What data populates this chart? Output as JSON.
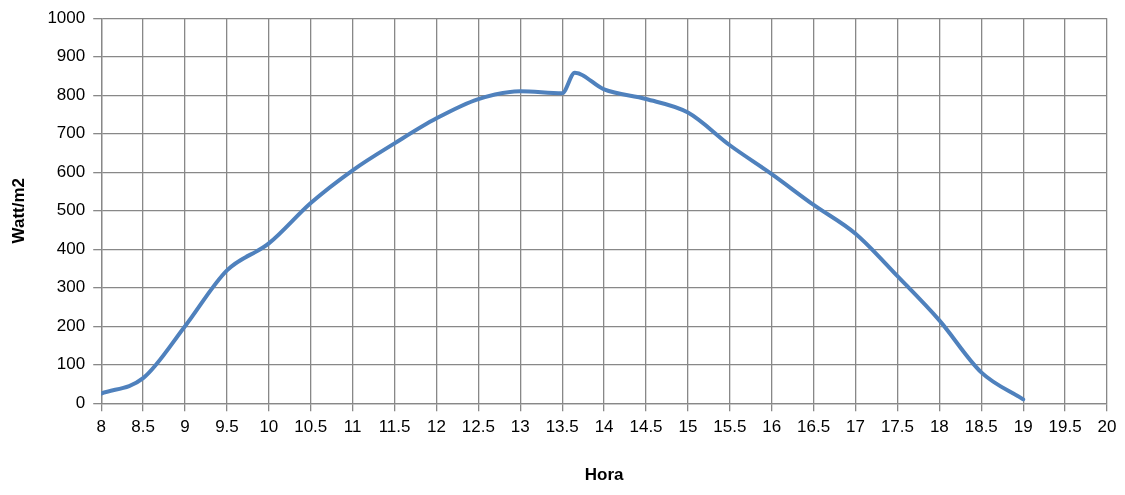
{
  "chart_data": {
    "type": "line",
    "xlabel": "Hora",
    "ylabel": "Watt/m2",
    "x": [
      8,
      8.5,
      9,
      9.5,
      10,
      10.5,
      11,
      11.5,
      12,
      12.5,
      13,
      13.5,
      13.65,
      14,
      14.5,
      15,
      15.5,
      16,
      16.5,
      17,
      17.5,
      18,
      18.5,
      19
    ],
    "series": [
      {
        "color": "#4f81bd",
        "values": [
          25,
          65,
          200,
          345,
          415,
          520,
          605,
          675,
          740,
          790,
          810,
          805,
          858,
          815,
          790,
          755,
          670,
          595,
          515,
          440,
          330,
          215,
          80,
          10
        ]
      }
    ],
    "xlim": [
      8,
      20
    ],
    "xticks": [
      8,
      8.5,
      9,
      9.5,
      10,
      10.5,
      11,
      11.5,
      12,
      12.5,
      13,
      13.5,
      14,
      14.5,
      15,
      15.5,
      16,
      16.5,
      17,
      17.5,
      18,
      18.5,
      19,
      19.5,
      20
    ],
    "ylim": [
      0,
      1000
    ],
    "yticks": [
      0,
      100,
      200,
      300,
      400,
      500,
      600,
      700,
      800,
      900,
      1000
    ],
    "grid": true,
    "legend": false,
    "marker": "none",
    "line_style": "solid"
  }
}
